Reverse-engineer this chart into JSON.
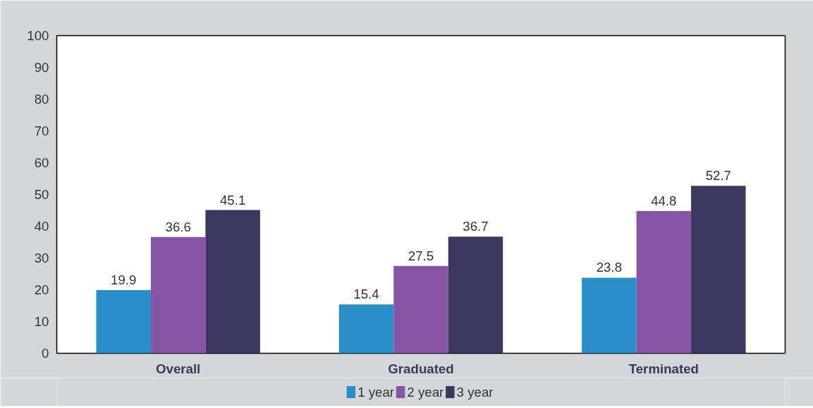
{
  "chart_data": {
    "type": "bar",
    "categories": [
      "Overall",
      "Graduated",
      "Terminated"
    ],
    "series": [
      {
        "name": "1 year",
        "color": "#2a8fc8",
        "values": [
          19.9,
          15.4,
          23.8
        ]
      },
      {
        "name": "2 year",
        "color": "#8755a6",
        "values": [
          36.6,
          27.5,
          44.8
        ]
      },
      {
        "name": "3 year",
        "color": "#3b3860",
        "values": [
          45.1,
          36.7,
          52.7
        ]
      }
    ],
    "ylim": [
      0,
      100
    ],
    "yticks": [
      0,
      10,
      20,
      30,
      40,
      50,
      60,
      70,
      80,
      90,
      100
    ],
    "grid": false,
    "legend": "bottom",
    "data_labels": true
  }
}
